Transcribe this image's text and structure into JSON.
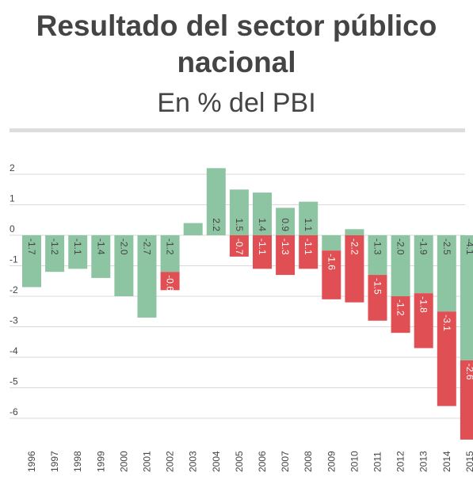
{
  "header": {
    "title": "Resultado del sector público nacional",
    "subtitle": "En % del PBI"
  },
  "colors": {
    "positive_component": "#8dc5a2",
    "negative_component": "#e04f53",
    "grid": "#d9d9d9",
    "text": "#444444"
  },
  "chart_data": {
    "type": "bar",
    "stacked": true,
    "title": "Resultado del sector público nacional",
    "subtitle": "En % del PBI",
    "categories": [
      "1996",
      "1997",
      "1998",
      "1999",
      "2000",
      "2001",
      "2002",
      "2003",
      "2004",
      "2005",
      "2006",
      "2007",
      "2008",
      "2009",
      "2010",
      "2011",
      "2012",
      "2013",
      "2014",
      "2015"
    ],
    "series": [
      {
        "values": [
          -1.7,
          -1.2,
          -1.1,
          -1.4,
          -2.0,
          -2.7,
          -1.2,
          0.4,
          2.2,
          1.5,
          1.4,
          0.9,
          1.1,
          -0.5,
          0.2,
          -1.3,
          -2.0,
          -1.9,
          -2.5,
          -4.1
        ],
        "labels": [
          "-1.7",
          "-1.2",
          "-1.1",
          "-1.4",
          "-2.0",
          "-2.7",
          "-1.2",
          "",
          "2.2",
          "1.5",
          "1.4",
          "0.9",
          "1.1",
          "",
          "",
          "-1.3",
          "-2.0",
          "-1.9",
          "-2.5",
          "-4.1"
        ]
      },
      {
        "values": [
          0,
          0,
          0,
          0,
          0,
          0,
          -0.6,
          0,
          0,
          -0.7,
          -1.1,
          -1.3,
          -1.1,
          -1.6,
          -2.2,
          -1.5,
          -1.2,
          -1.8,
          -3.1,
          -2.6
        ],
        "labels": [
          "",
          "",
          "",
          "",
          "",
          "",
          "-0.6",
          "",
          "",
          "-0.7",
          "-1.1",
          "-1.3",
          "-1.1",
          "-1.6",
          "-2.2",
          "-1.5",
          "-1.2",
          "-1.8",
          "-3.1",
          "-2.6"
        ]
      }
    ],
    "yticks": [
      2,
      1,
      0,
      -1,
      -2,
      -3,
      -4,
      -5,
      -6
    ],
    "ytick_labels": [
      "2",
      "1",
      "0",
      "-1",
      "-2",
      "-3",
      "-4",
      "-5",
      "-6"
    ],
    "ylim": [
      -6.8,
      2.6
    ],
    "grid": true,
    "xlabel": "",
    "ylabel": ""
  }
}
